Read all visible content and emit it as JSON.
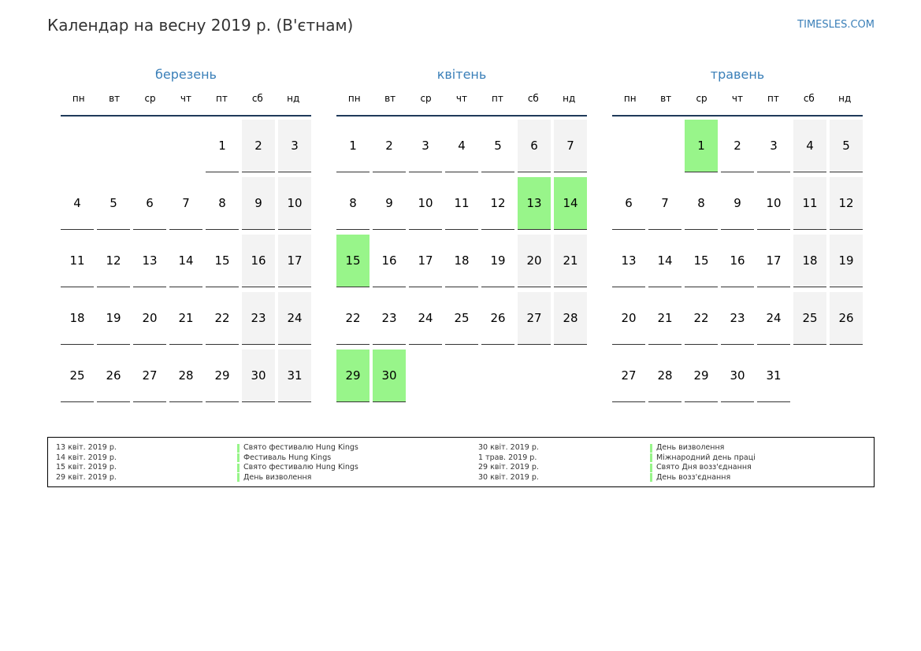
{
  "title": "Календар на весну 2019 р. (В'єтнам)",
  "brand": "TIMESLES.COM",
  "colors": {
    "accent": "#3a7fb8",
    "holiday": "#98f58a",
    "weekend": "#f3f3f3"
  },
  "weekdays": [
    "пн",
    "вт",
    "ср",
    "чт",
    "пт",
    "сб",
    "нд"
  ],
  "months": [
    {
      "name": "березень",
      "start_offset": 4,
      "days": 31,
      "holidays": []
    },
    {
      "name": "квітень",
      "start_offset": 0,
      "days": 30,
      "holidays": [
        13,
        14,
        15,
        29,
        30
      ]
    },
    {
      "name": "травень",
      "start_offset": 2,
      "days": 31,
      "holidays": [
        1
      ]
    }
  ],
  "legend": {
    "left": [
      {
        "date": "13 квіт. 2019 р.",
        "name": "Свято фестивалю Hung Kings"
      },
      {
        "date": "14 квіт. 2019 р.",
        "name": "Фестиваль Hung Kings"
      },
      {
        "date": "15 квіт. 2019 р.",
        "name": "Свято фестивалю Hung Kings"
      },
      {
        "date": "29 квіт. 2019 р.",
        "name": "День визволення"
      }
    ],
    "right": [
      {
        "date": "30 квіт. 2019 р.",
        "name": "День визволення"
      },
      {
        "date": "1 трав. 2019 р.",
        "name": "Міжнародний день праці"
      },
      {
        "date": "29 квіт. 2019 р.",
        "name": "Свято Дня возз'єднання"
      },
      {
        "date": "30 квіт. 2019 р.",
        "name": "День возз'єднання"
      }
    ]
  }
}
